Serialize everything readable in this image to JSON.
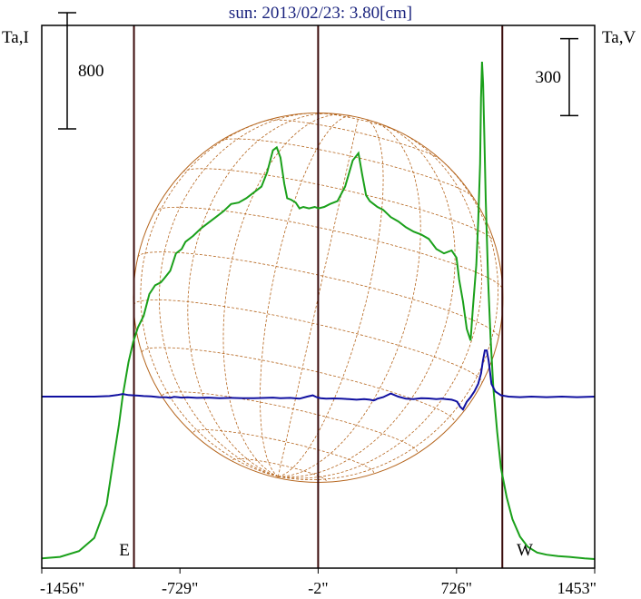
{
  "title": "sun: 2013/02/23: 3.80[cm]",
  "colors": {
    "background": "#ffffff",
    "title": "#1a237e",
    "frame": "#000000",
    "markers": "#3a0b0b",
    "disk": "#b5651d",
    "intensity": "#1aa01a",
    "polarization": "#1010a0"
  },
  "chart_data": {
    "type": "line",
    "title": "sun: 2013/02/23: 3.80[cm]",
    "xlabel": "",
    "xlim": [
      -1456,
      1453
    ],
    "x_unit": "\"",
    "x_ticks": [
      {
        "value": -1456,
        "label": "-1456\""
      },
      {
        "value": -729,
        "label": "-729\""
      },
      {
        "value": -2,
        "label": "-2\""
      },
      {
        "value": 726,
        "label": "726\""
      },
      {
        "value": 1453,
        "label": "1453\""
      }
    ],
    "y_left_label": "Ta,I",
    "y_right_label": "Ta,V",
    "scale_left": {
      "label": "800",
      "value": 800
    },
    "scale_right": {
      "label": "300",
      "value": 300
    },
    "vertical_markers": [
      -971,
      -2,
      967
    ],
    "limb_labels": {
      "east": "E",
      "west": "W"
    },
    "solar_disk_radius_arcsec": 972,
    "series": [
      {
        "name": "Ta,I",
        "axis": "left",
        "x": [
          -1456,
          -1360,
          -1260,
          -1180,
          -1115,
          -1080,
          -1050,
          -1030,
          -1000,
          -975,
          -950,
          -920,
          -890,
          -860,
          -830,
          -810,
          -780,
          -750,
          -720,
          -700,
          -660,
          -620,
          -580,
          -540,
          -500,
          -460,
          -420,
          -380,
          -330,
          -300,
          -270,
          -240,
          -220,
          -200,
          -180,
          -165,
          -145,
          -120,
          -100,
          -80,
          -50,
          -20,
          0,
          30,
          60,
          100,
          140,
          180,
          210,
          230,
          250,
          270,
          290,
          310,
          340,
          380,
          420,
          460,
          500,
          540,
          580,
          620,
          660,
          700,
          726,
          740,
          760,
          780,
          800,
          812,
          830,
          840,
          850,
          855,
          860,
          866,
          872,
          880,
          892,
          905,
          920,
          940,
          960,
          990,
          1020,
          1060,
          1100,
          1150,
          1200,
          1260,
          1320,
          1400,
          1453
        ],
        "y": [
          -20,
          -10,
          30,
          120,
          350,
          650,
          900,
          1100,
          1330,
          1470,
          1570,
          1650,
          1800,
          1860,
          1880,
          1910,
          1960,
          2080,
          2110,
          2160,
          2200,
          2250,
          2290,
          2330,
          2370,
          2420,
          2430,
          2460,
          2510,
          2540,
          2640,
          2790,
          2810,
          2740,
          2560,
          2460,
          2450,
          2430,
          2390,
          2400,
          2390,
          2400,
          2390,
          2400,
          2420,
          2440,
          2540,
          2720,
          2770,
          2620,
          2480,
          2440,
          2420,
          2400,
          2380,
          2330,
          2300,
          2260,
          2230,
          2210,
          2180,
          2110,
          2080,
          2100,
          2050,
          1900,
          1750,
          1560,
          1480,
          1700,
          2000,
          2300,
          2700,
          3150,
          3400,
          3250,
          2900,
          2450,
          1900,
          1500,
          1150,
          850,
          600,
          400,
          250,
          130,
          60,
          20,
          5,
          -5,
          -10,
          -20,
          -25
        ]
      },
      {
        "name": "Ta,V",
        "axis": "right",
        "x": [
          -1456,
          -1340,
          -1180,
          -1100,
          -1060,
          -1030,
          -1000,
          -975,
          -950,
          -920,
          -880,
          -840,
          -800,
          -780,
          -760,
          -740,
          -720,
          -690,
          -640,
          -580,
          -520,
          -460,
          -400,
          -340,
          -280,
          -240,
          -200,
          -150,
          -100,
          -60,
          -30,
          -10,
          10,
          40,
          80,
          120,
          160,
          200,
          240,
          270,
          290,
          300,
          310,
          340,
          380,
          420,
          460,
          500,
          540,
          580,
          620,
          650,
          670,
          700,
          718,
          730,
          745,
          760,
          780,
          800,
          820,
          840,
          855,
          865,
          875,
          885,
          895,
          910,
          930,
          960,
          1000,
          1060,
          1120,
          1200,
          1280,
          1360,
          1453
        ],
        "y": [
          0,
          0,
          0,
          2,
          6,
          10,
          6,
          5,
          4,
          2,
          1,
          -2,
          -3,
          -5,
          -1,
          -2,
          -4,
          -3,
          -5,
          -4,
          -6,
          -5,
          -6,
          -6,
          -5,
          -4,
          -6,
          -5,
          -8,
          0,
          5,
          -2,
          -6,
          -8,
          -7,
          -8,
          -10,
          -12,
          -10,
          -12,
          -15,
          -12,
          -8,
          -2,
          12,
          0,
          -8,
          -10,
          -6,
          -7,
          -10,
          -8,
          -10,
          -12,
          -16,
          -20,
          -40,
          -50,
          -20,
          -2,
          20,
          50,
          90,
          140,
          180,
          180,
          140,
          50,
          20,
          5,
          0,
          -2,
          0,
          -2,
          0,
          -2,
          0
        ]
      }
    ]
  }
}
